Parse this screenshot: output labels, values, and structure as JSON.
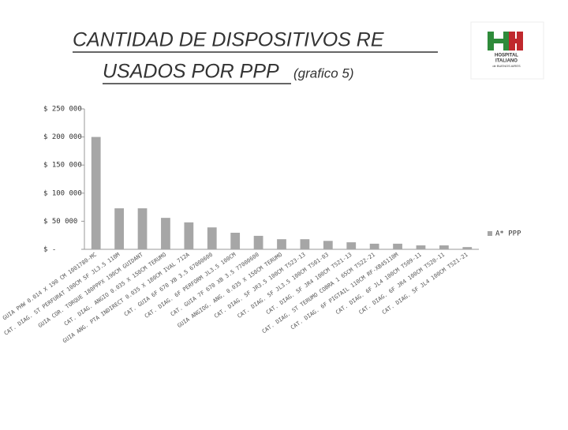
{
  "logo": {
    "line1": "HOSPITAL",
    "line2": "ITALIANO",
    "line3": "de BUENOS AIRES"
  },
  "chart_data": {
    "type": "bar",
    "title": [
      "CANTIDAD DE DISPOSITIVOS RE",
      "USADOS POR PPP"
    ],
    "subtitle": "(grafico 5)",
    "categories": [
      "GUIA PHW 0.014 X 190 CM 1001780-MC",
      "CAT. DIAG. ST PERFURAT 100CM 5F JL3.5 110M",
      "GUIA COR. TORQUE 180PPPX 190CM GUIDANT",
      "CAT. DIAG. ANGIO 0.035 X 150CM TERUMO",
      "GUIA ANG. PTA INDIRECT 0.035 X 180CM IVAL 712A",
      "CAT. GUIA 6F 670 XB 3.5 67000600",
      "CAT. DIAG. 6F PERFORM JL3.5 100CM",
      "CAT. GUIA 7F 670 XB 3.5 77000600",
      "GUIA ANGIOG. ANG. 0.035 X 150CM TERUMO",
      "CAT. DIAG. 5F JR3.5 100CM TS23-13",
      "CAT. DIAG. 5F JL3.5 100CM TS01-03",
      "CAT. DIAG. 5F JR4 100CM TS21-13",
      "CAT. DIAG. ST TERUMO COBRA 1 65CM TS22-21",
      "CAT. DIAG. 6F PIGTAIL 110CM RF-XB45110M",
      "CAT. DIAG. 6F JL4 100CM TS09-11",
      "CAT. DIAG. 6F JR4 100CM TS20-11",
      "CAT. DIAG. 5F JL4 100CM TS21-21"
    ],
    "series": [
      {
        "name": "A* PPP",
        "color": "#a6a6a6",
        "values": [
          200000,
          73000,
          73000,
          56000,
          48000,
          39000,
          29500,
          24000,
          18000,
          18000,
          15000,
          12500,
          10000,
          10000,
          7000,
          7000,
          4000
        ]
      }
    ],
    "ylim": [
      0,
      250000
    ],
    "yticks": [
      {
        "value": 0,
        "label": "$ -"
      },
      {
        "value": 50000,
        "label": "$ 50 000"
      },
      {
        "value": 100000,
        "label": "$ 100 000"
      },
      {
        "value": 150000,
        "label": "$ 150 000"
      },
      {
        "value": 200000,
        "label": "$ 200 000"
      },
      {
        "value": 250000,
        "label": "$ 250 000"
      }
    ],
    "legend": "right"
  }
}
